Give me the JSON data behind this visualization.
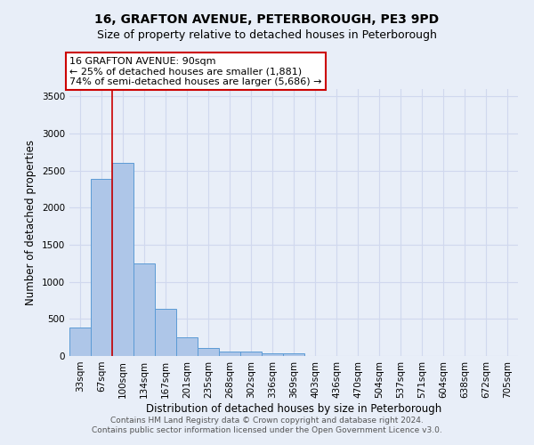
{
  "title": "16, GRAFTON AVENUE, PETERBOROUGH, PE3 9PD",
  "subtitle": "Size of property relative to detached houses in Peterborough",
  "xlabel": "Distribution of detached houses by size in Peterborough",
  "ylabel": "Number of detached properties",
  "bins": [
    "33sqm",
    "67sqm",
    "100sqm",
    "134sqm",
    "167sqm",
    "201sqm",
    "235sqm",
    "268sqm",
    "302sqm",
    "336sqm",
    "369sqm",
    "403sqm",
    "436sqm",
    "470sqm",
    "504sqm",
    "537sqm",
    "571sqm",
    "604sqm",
    "638sqm",
    "672sqm",
    "705sqm"
  ],
  "values": [
    390,
    2390,
    2600,
    1250,
    640,
    250,
    110,
    60,
    55,
    35,
    35,
    0,
    0,
    0,
    0,
    0,
    0,
    0,
    0,
    0,
    0
  ],
  "bar_color": "#aec6e8",
  "bar_edge_color": "#5b9bd5",
  "background_color": "#e8eef8",
  "grid_color": "#d0d8ee",
  "vline_color": "#cc0000",
  "vline_x": 1.5,
  "annotation_text": "16 GRAFTON AVENUE: 90sqm\n← 25% of detached houses are smaller (1,881)\n74% of semi-detached houses are larger (5,686) →",
  "annotation_box_color": "#ffffff",
  "annotation_box_edge_color": "#cc0000",
  "ylim": [
    0,
    3600
  ],
  "yticks": [
    0,
    500,
    1000,
    1500,
    2000,
    2500,
    3000,
    3500
  ],
  "footer1": "Contains HM Land Registry data © Crown copyright and database right 2024.",
  "footer2": "Contains public sector information licensed under the Open Government Licence v3.0.",
  "title_fontsize": 10,
  "subtitle_fontsize": 9,
  "label_fontsize": 8.5,
  "tick_fontsize": 7.5,
  "annotation_fontsize": 8,
  "footer_fontsize": 6.5
}
